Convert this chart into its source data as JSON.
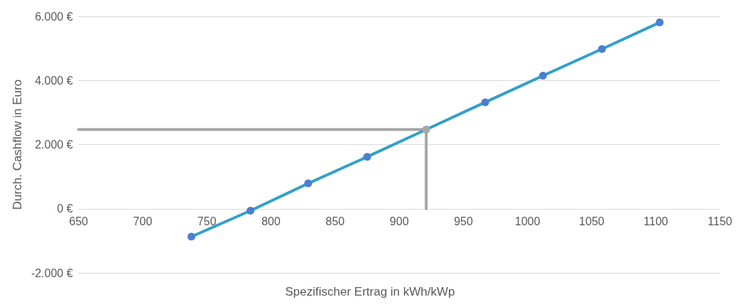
{
  "chart_data": {
    "type": "line",
    "xlabel": "Spezifischer Ertrag in kWh/kWp",
    "ylabel": "Durch. Cashflow in Euro",
    "xlim": [
      650,
      1150
    ],
    "xticks": [
      650,
      700,
      750,
      800,
      850,
      900,
      950,
      1000,
      1050,
      1100,
      1150
    ],
    "ylim": [
      -2000,
      6000
    ],
    "yticks": [
      {
        "value": -2000,
        "label": "-2.000 €"
      },
      {
        "value": 0,
        "label": "0 €"
      },
      {
        "value": 2000,
        "label": "2.000 €"
      },
      {
        "value": 4000,
        "label": "4.000 €"
      },
      {
        "value": 6000,
        "label": "6.000 €"
      }
    ],
    "grid": "y",
    "marker": "circle",
    "line_style": "solid",
    "series": [
      {
        "color": "#31a0c8",
        "colors": [
          "#4a7fd0",
          "#4a7fd0",
          "#4a7fd0",
          "#4a7fd0",
          "#a6a6a6",
          "#4a7fd0",
          "#4a7fd0",
          "#4a7fd0",
          "#4a7fd0"
        ],
        "x": [
          738,
          784,
          829,
          875,
          921,
          967,
          1012,
          1058,
          1103
        ],
        "values": [
          -870,
          -60,
          790,
          1620,
          2470,
          3320,
          4150,
          4980,
          5810
        ]
      },
      {
        "color": "#a6a6a6",
        "marker": "none",
        "x": [
          650,
          921,
          921
        ],
        "values": [
          2470,
          2470,
          0
        ]
      }
    ]
  }
}
